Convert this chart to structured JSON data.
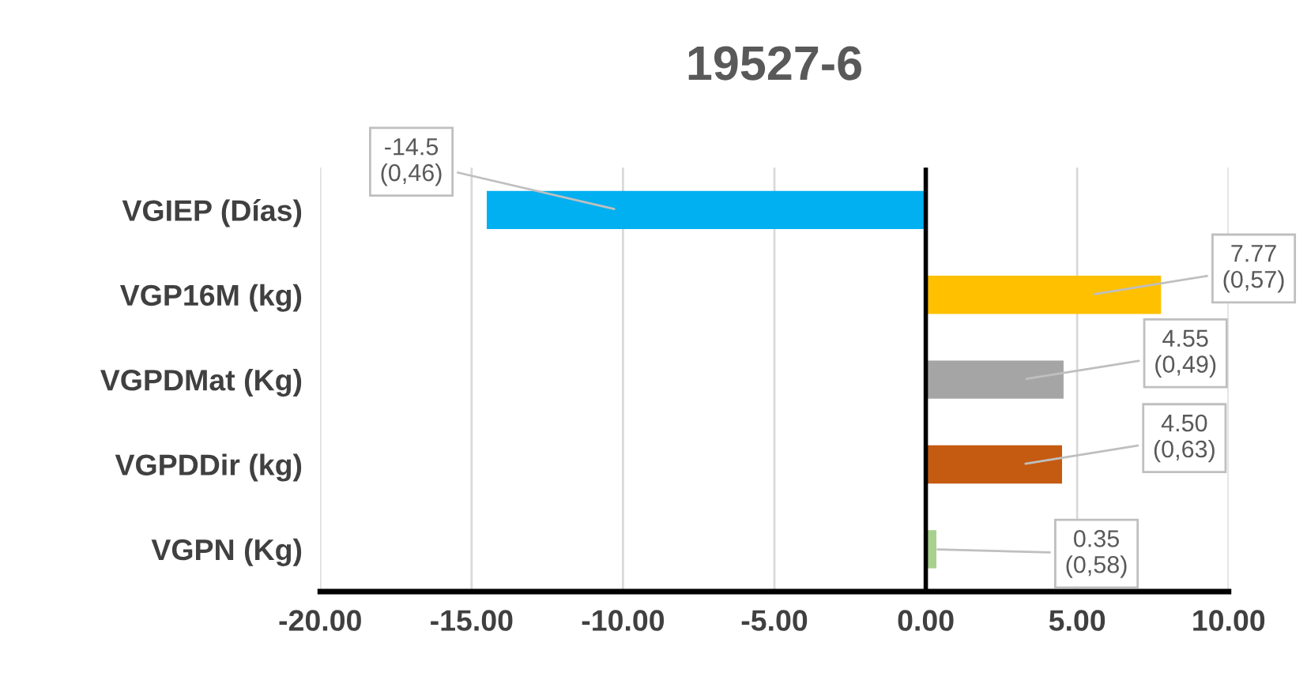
{
  "chart_data": {
    "type": "bar",
    "orientation": "horizontal",
    "title": "19527-6",
    "categories": [
      "VGIEP (Días)",
      "VGP16M (kg)",
      "VGPDMat (Kg)",
      "VGPDDir (kg)",
      "VGPN (Kg)"
    ],
    "values": [
      -14.5,
      7.77,
      4.55,
      4.5,
      0.35
    ],
    "colors": [
      "#00b0f0",
      "#ffc000",
      "#a5a5a5",
      "#c55a11",
      "#a9d18e"
    ],
    "value_labels": [
      "-14.5\n(0,46)",
      "7.77\n(0,57)",
      "4.55\n(0,49)",
      "4.50\n(0,63)",
      "0.35\n(0,58)"
    ],
    "xlim": [
      -20,
      10
    ],
    "xticks": [
      {
        "value": -20,
        "label": "-20.00"
      },
      {
        "value": -15,
        "label": "-15.00"
      },
      {
        "value": -10,
        "label": "-10.00"
      },
      {
        "value": -5,
        "label": "-5.00"
      },
      {
        "value": 0,
        "label": "0.00"
      },
      {
        "value": 5,
        "label": "5.00"
      },
      {
        "value": 10,
        "label": "10.00"
      }
    ],
    "grid": "x"
  }
}
